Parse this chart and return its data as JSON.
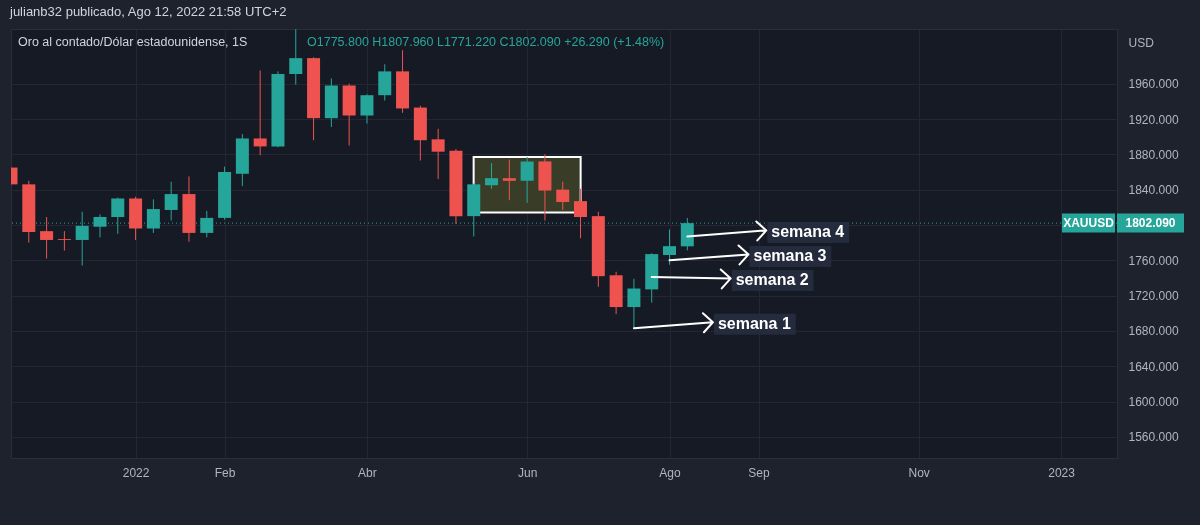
{
  "chart_data": {
    "type": "candlestick",
    "title": "Oro al contado/Dólar estadounidense, 1S",
    "ylabel": "USD",
    "annotations": [
      "julianb32 publicado, Ago 12, 2022 21:58 UTC+2",
      "O1775.800 H1807.960 L1771.220 C1802.090 +26.290 (+1.48%)",
      "1802.090",
      {
        "text": "semana 1",
        "x": "2022-07-18",
        "y": 1683
      },
      {
        "text": "semana 2",
        "x": "2022-07-25",
        "y": 1741
      },
      {
        "text": "semana 3",
        "x": "2022-08-01",
        "y": 1760
      },
      {
        "text": "semana 4",
        "x": "2022-08-08",
        "y": 1787
      }
    ],
    "x": [
      "2021-11-15",
      "2021-11-22",
      "2021-11-29",
      "2021-12-06",
      "2021-12-13",
      "2021-12-20",
      "2021-12-27",
      "2022-01-03",
      "2022-01-10",
      "2022-01-17",
      "2022-01-24",
      "2022-01-31",
      "2022-02-07",
      "2022-02-14",
      "2022-02-21",
      "2022-02-28",
      "2022-03-07",
      "2022-03-14",
      "2022-03-21",
      "2022-03-28",
      "2022-04-04",
      "2022-04-11",
      "2022-04-18",
      "2022-04-25",
      "2022-05-02",
      "2022-05-09",
      "2022-05-16",
      "2022-05-23",
      "2022-05-30",
      "2022-06-06",
      "2022-06-13",
      "2022-06-20",
      "2022-06-27",
      "2022-07-04",
      "2022-07-11",
      "2022-07-18",
      "2022-07-25",
      "2022-08-01",
      "2022-08-08"
    ],
    "ohlc": [
      [
        1865,
        1865,
        1846,
        1846
      ],
      [
        1846,
        1850,
        1780,
        1792
      ],
      [
        1793,
        1809,
        1762,
        1783
      ],
      [
        1784,
        1793,
        1771,
        1783
      ],
      [
        1783,
        1815,
        1754,
        1799
      ],
      [
        1798,
        1812,
        1786,
        1809
      ],
      [
        1809,
        1831,
        1790,
        1830
      ],
      [
        1830,
        1832,
        1783,
        1796
      ],
      [
        1796,
        1829,
        1791,
        1818
      ],
      [
        1817,
        1849,
        1805,
        1835
      ],
      [
        1835,
        1855,
        1781,
        1791
      ],
      [
        1791,
        1816,
        1786,
        1808
      ],
      [
        1808,
        1866,
        1806,
        1860
      ],
      [
        1858,
        1903,
        1844,
        1898
      ],
      [
        1898,
        1975,
        1879,
        1889
      ],
      [
        1889,
        1974,
        1888,
        1971
      ],
      [
        1971,
        2022,
        1959,
        1989
      ],
      [
        1989,
        1990,
        1896,
        1921
      ],
      [
        1921,
        1966,
        1911,
        1958
      ],
      [
        1958,
        1960,
        1890,
        1924
      ],
      [
        1924,
        1948,
        1915,
        1947
      ],
      [
        1947,
        1982,
        1941,
        1974
      ],
      [
        1974,
        1998,
        1927,
        1932
      ],
      [
        1933,
        1935,
        1873,
        1896
      ],
      [
        1897,
        1909,
        1852,
        1883
      ],
      [
        1884,
        1886,
        1801,
        1810
      ],
      [
        1810,
        1847,
        1787,
        1846
      ],
      [
        1845,
        1870,
        1841,
        1853
      ],
      [
        1853,
        1874,
        1828,
        1850
      ],
      [
        1850,
        1877,
        1825,
        1872
      ],
      [
        1872,
        1880,
        1805,
        1839
      ],
      [
        1840,
        1849,
        1817,
        1826
      ],
      [
        1827,
        1841,
        1785,
        1809
      ],
      [
        1810,
        1815,
        1730,
        1742
      ],
      [
        1743,
        1747,
        1699,
        1707
      ],
      [
        1707,
        1739,
        1683,
        1728
      ],
      [
        1727,
        1768,
        1712,
        1767
      ],
      [
        1766,
        1795,
        1755,
        1776
      ],
      [
        1775.8,
        1807.96,
        1771.22,
        1802.09
      ]
    ],
    "colors": [
      "#ef5350",
      "#ef5350",
      "#ef5350",
      "#ef5350",
      "#26a69a",
      "#26a69a",
      "#26a69a",
      "#ef5350",
      "#26a69a",
      "#26a69a",
      "#ef5350",
      "#26a69a",
      "#26a69a",
      "#26a69a",
      "#ef5350",
      "#26a69a",
      "#26a69a",
      "#ef5350",
      "#26a69a",
      "#ef5350",
      "#26a69a",
      "#26a69a",
      "#ef5350",
      "#ef5350",
      "#ef5350",
      "#ef5350",
      "#26a69a",
      "#26a69a",
      "#ef5350",
      "#26a69a",
      "#ef5350",
      "#ef5350",
      "#ef5350",
      "#ef5350",
      "#ef5350",
      "#26a69a",
      "#26a69a",
      "#26a69a",
      "#26a69a"
    ],
    "series": [
      {
        "type": "bar",
        "x": [
          "2022-06-06"
        ],
        "base": [
          1814
        ],
        "values": [
          63
        ],
        "color": "#393d28"
      }
    ],
    "ref_lines": [
      {
        "axis": "y",
        "value": 1802.09,
        "label": "XAUUSD",
        "color": "#26a69a",
        "line_style": "dotted"
      }
    ],
    "xlim": [
      "2021-11-15",
      "2023-01-24"
    ],
    "ylim": [
      1536,
      2022
    ],
    "xticks": [
      {
        "value": "2022-01-03",
        "label": "2022"
      },
      {
        "value": "2022-02-07",
        "label": "Feb"
      },
      {
        "value": "2022-04-04",
        "label": "Abr"
      },
      {
        "value": "2022-06-06",
        "label": "Jun"
      },
      {
        "value": "2022-08-01",
        "label": "Ago"
      },
      {
        "value": "2022-09-05",
        "label": "Sep"
      },
      {
        "value": "2022-11-07",
        "label": "Nov"
      },
      {
        "value": "2023-01-02",
        "label": "2023"
      }
    ],
    "yticks": [
      {
        "value": 1560,
        "label": "1560.000"
      },
      {
        "value": 1600,
        "label": "1600.000"
      },
      {
        "value": 1640,
        "label": "1640.000"
      },
      {
        "value": 1680,
        "label": "1680.000"
      },
      {
        "value": 1720,
        "label": "1720.000"
      },
      {
        "value": 1760,
        "label": "1760.000"
      },
      {
        "value": 1800,
        "label": null
      },
      {
        "value": 1840,
        "label": "1840.000"
      },
      {
        "value": 1880,
        "label": "1880.000"
      },
      {
        "value": 1920,
        "label": "1920.000"
      },
      {
        "value": 1960,
        "label": "1960.000"
      }
    ],
    "grid": true
  }
}
